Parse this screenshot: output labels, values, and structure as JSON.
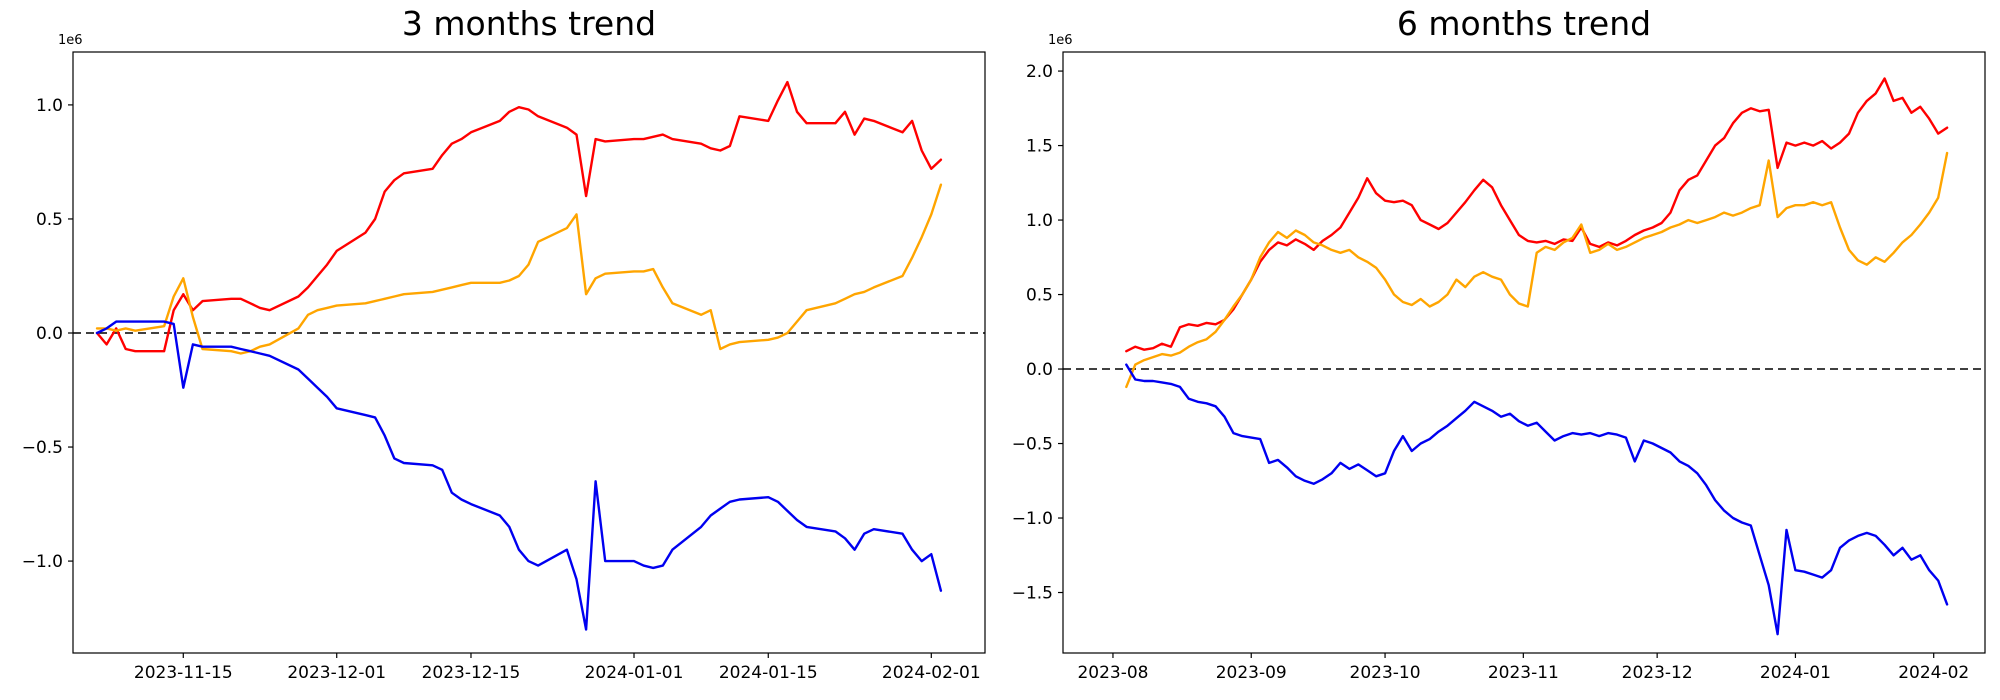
{
  "figure": {
    "background": "#ffffff",
    "axis_color": "#000000",
    "zero_line_color": "#000000"
  },
  "chart_data": [
    {
      "type": "line",
      "title": "3 months trend",
      "y_offset_label": "1e6",
      "xlabel": "",
      "ylabel": "",
      "grid": false,
      "legend": "none",
      "xlim": [
        -2.5,
        92.6
      ],
      "ylim": [
        -1.403,
        1.232
      ],
      "zero_dashed_line": 0,
      "yticks": [
        {
          "v": 1.0,
          "label": "1.0"
        },
        {
          "v": 0.5,
          "label": "0.5"
        },
        {
          "v": 0.0,
          "label": "0.0"
        },
        {
          "v": -0.5,
          "label": "−0.5"
        },
        {
          "v": -1.0,
          "label": "−1.0"
        }
      ],
      "xticks": [
        {
          "d": 9,
          "label": "2023-11-15"
        },
        {
          "d": 25,
          "label": "2023-12-01"
        },
        {
          "d": 39,
          "label": "2023-12-15"
        },
        {
          "d": 56,
          "label": "2024-01-01"
        },
        {
          "d": 70,
          "label": "2024-01-15"
        },
        {
          "d": 87,
          "label": "2024-02-01"
        }
      ],
      "x_days": [
        0,
        1,
        2,
        3,
        4,
        7,
        8,
        9,
        10,
        11,
        14,
        15,
        16,
        17,
        18,
        21,
        22,
        23,
        24,
        25,
        28,
        29,
        30,
        31,
        32,
        35,
        36,
        37,
        38,
        39,
        42,
        43,
        44,
        45,
        46,
        49,
        50,
        51,
        52,
        53,
        56,
        57,
        58,
        59,
        60,
        63,
        64,
        65,
        66,
        67,
        70,
        71,
        72,
        73,
        74,
        77,
        78,
        79,
        80,
        81,
        84,
        85,
        86,
        87,
        88
      ],
      "series": [
        {
          "name": "red",
          "color": "#ff0000",
          "values": [
            0.0,
            -0.05,
            0.02,
            -0.07,
            -0.08,
            -0.08,
            0.1,
            0.17,
            0.1,
            0.14,
            0.15,
            0.15,
            0.13,
            0.11,
            0.1,
            0.16,
            0.2,
            0.25,
            0.3,
            0.36,
            0.44,
            0.5,
            0.62,
            0.67,
            0.7,
            0.72,
            0.78,
            0.83,
            0.85,
            0.88,
            0.93,
            0.97,
            0.99,
            0.98,
            0.95,
            0.9,
            0.87,
            0.6,
            0.85,
            0.84,
            0.85,
            0.85,
            0.86,
            0.87,
            0.85,
            0.83,
            0.81,
            0.8,
            0.82,
            0.95,
            0.93,
            1.02,
            1.1,
            0.97,
            0.92,
            0.92,
            0.97,
            0.87,
            0.94,
            0.93,
            0.88,
            0.93,
            0.8,
            0.72,
            0.76
          ]
        },
        {
          "name": "orange",
          "color": "#ffa500",
          "values": [
            0.02,
            0.02,
            0.01,
            0.02,
            0.01,
            0.03,
            0.16,
            0.24,
            0.07,
            -0.07,
            -0.08,
            -0.09,
            -0.08,
            -0.06,
            -0.05,
            0.02,
            0.08,
            0.1,
            0.11,
            0.12,
            0.13,
            0.14,
            0.15,
            0.16,
            0.17,
            0.18,
            0.19,
            0.2,
            0.21,
            0.22,
            0.22,
            0.23,
            0.25,
            0.3,
            0.4,
            0.46,
            0.52,
            0.17,
            0.24,
            0.26,
            0.27,
            0.27,
            0.28,
            0.2,
            0.13,
            0.08,
            0.1,
            -0.07,
            -0.05,
            -0.04,
            -0.03,
            -0.02,
            0.0,
            0.05,
            0.1,
            0.13,
            0.15,
            0.17,
            0.18,
            0.2,
            0.25,
            0.33,
            0.42,
            0.52,
            0.65
          ]
        },
        {
          "name": "blue",
          "color": "#0000f0",
          "values": [
            0.0,
            0.02,
            0.05,
            0.05,
            0.05,
            0.05,
            0.04,
            -0.24,
            -0.05,
            -0.06,
            -0.06,
            -0.07,
            -0.08,
            -0.09,
            -0.1,
            -0.16,
            -0.2,
            -0.24,
            -0.28,
            -0.33,
            -0.36,
            -0.37,
            -0.45,
            -0.55,
            -0.57,
            -0.58,
            -0.6,
            -0.7,
            -0.73,
            -0.75,
            -0.8,
            -0.85,
            -0.95,
            -1.0,
            -1.02,
            -0.95,
            -1.08,
            -1.3,
            -0.65,
            -1.0,
            -1.0,
            -1.02,
            -1.03,
            -1.02,
            -0.95,
            -0.85,
            -0.8,
            -0.77,
            -0.74,
            -0.73,
            -0.72,
            -0.74,
            -0.78,
            -0.82,
            -0.85,
            -0.87,
            -0.9,
            -0.95,
            -0.88,
            -0.86,
            -0.88,
            -0.95,
            -1.0,
            -0.97,
            -1.13
          ]
        }
      ]
    },
    {
      "type": "line",
      "title": "6 months trend",
      "y_offset_label": "1e6",
      "xlabel": "",
      "ylabel": "",
      "grid": false,
      "legend": "none",
      "xlim": [
        -14.2,
        192.5
      ],
      "ylim": [
        -1.906,
        2.128
      ],
      "zero_dashed_line": 0,
      "yticks": [
        {
          "v": 2.0,
          "label": "2.0"
        },
        {
          "v": 1.5,
          "label": "1.5"
        },
        {
          "v": 1.0,
          "label": "1.0"
        },
        {
          "v": 0.5,
          "label": "0.5"
        },
        {
          "v": 0.0,
          "label": "0.0"
        },
        {
          "v": -0.5,
          "label": "−0.5"
        },
        {
          "v": -1.0,
          "label": "−1.0"
        },
        {
          "v": -1.5,
          "label": "−1.5"
        }
      ],
      "xticks": [
        {
          "d": -3,
          "label": "2023-08"
        },
        {
          "d": 28,
          "label": "2023-09"
        },
        {
          "d": 58,
          "label": "2023-10"
        },
        {
          "d": 89,
          "label": "2023-11"
        },
        {
          "d": 119,
          "label": "2023-12"
        },
        {
          "d": 150,
          "label": "2024-01"
        },
        {
          "d": 181,
          "label": "2024-02"
        }
      ],
      "x_days": [
        0,
        2,
        4,
        6,
        8,
        10,
        12,
        14,
        16,
        18,
        20,
        22,
        24,
        26,
        28,
        30,
        32,
        34,
        36,
        38,
        40,
        42,
        44,
        46,
        48,
        50,
        52,
        54,
        56,
        58,
        60,
        62,
        64,
        66,
        68,
        70,
        72,
        74,
        76,
        78,
        80,
        82,
        84,
        86,
        88,
        90,
        92,
        94,
        96,
        98,
        100,
        102,
        104,
        106,
        108,
        110,
        112,
        114,
        116,
        118,
        120,
        122,
        124,
        126,
        128,
        130,
        132,
        134,
        136,
        138,
        140,
        142,
        144,
        146,
        148,
        150,
        152,
        154,
        156,
        158,
        160,
        162,
        164,
        166,
        168,
        170,
        172,
        174,
        176,
        178,
        180,
        182,
        184
      ],
      "series": [
        {
          "name": "red",
          "color": "#ff0000",
          "values": [
            0.12,
            0.15,
            0.13,
            0.14,
            0.17,
            0.15,
            0.28,
            0.3,
            0.29,
            0.31,
            0.3,
            0.33,
            0.4,
            0.5,
            0.6,
            0.72,
            0.8,
            0.85,
            0.83,
            0.87,
            0.84,
            0.8,
            0.86,
            0.9,
            0.95,
            1.05,
            1.15,
            1.28,
            1.18,
            1.13,
            1.12,
            1.13,
            1.1,
            1.0,
            0.97,
            0.94,
            0.98,
            1.05,
            1.12,
            1.2,
            1.27,
            1.22,
            1.1,
            1.0,
            0.9,
            0.86,
            0.85,
            0.86,
            0.84,
            0.87,
            0.86,
            0.95,
            0.84,
            0.82,
            0.85,
            0.83,
            0.86,
            0.9,
            0.93,
            0.95,
            0.98,
            1.05,
            1.2,
            1.27,
            1.3,
            1.4,
            1.5,
            1.55,
            1.65,
            1.72,
            1.75,
            1.73,
            1.74,
            1.35,
            1.52,
            1.5,
            1.52,
            1.5,
            1.53,
            1.48,
            1.52,
            1.58,
            1.72,
            1.8,
            1.85,
            1.95,
            1.8,
            1.82,
            1.72,
            1.76,
            1.68,
            1.58,
            1.62
          ]
        },
        {
          "name": "orange",
          "color": "#ffa500",
          "values": [
            -0.12,
            0.03,
            0.06,
            0.08,
            0.1,
            0.09,
            0.11,
            0.15,
            0.18,
            0.2,
            0.25,
            0.33,
            0.42,
            0.5,
            0.6,
            0.75,
            0.85,
            0.92,
            0.88,
            0.93,
            0.9,
            0.85,
            0.83,
            0.8,
            0.78,
            0.8,
            0.75,
            0.72,
            0.68,
            0.6,
            0.5,
            0.45,
            0.43,
            0.47,
            0.42,
            0.45,
            0.5,
            0.6,
            0.55,
            0.62,
            0.65,
            0.62,
            0.6,
            0.5,
            0.44,
            0.42,
            0.78,
            0.82,
            0.8,
            0.85,
            0.88,
            0.97,
            0.78,
            0.8,
            0.84,
            0.8,
            0.82,
            0.85,
            0.88,
            0.9,
            0.92,
            0.95,
            0.97,
            1.0,
            0.98,
            1.0,
            1.02,
            1.05,
            1.03,
            1.05,
            1.08,
            1.1,
            1.4,
            1.02,
            1.08,
            1.1,
            1.1,
            1.12,
            1.1,
            1.12,
            0.95,
            0.8,
            0.73,
            0.7,
            0.75,
            0.72,
            0.78,
            0.85,
            0.9,
            0.97,
            1.05,
            1.15,
            1.45
          ]
        },
        {
          "name": "blue",
          "color": "#0000f0",
          "values": [
            0.03,
            -0.07,
            -0.08,
            -0.08,
            -0.09,
            -0.1,
            -0.12,
            -0.2,
            -0.22,
            -0.23,
            -0.25,
            -0.32,
            -0.43,
            -0.45,
            -0.46,
            -0.47,
            -0.63,
            -0.61,
            -0.66,
            -0.72,
            -0.75,
            -0.77,
            -0.74,
            -0.7,
            -0.63,
            -0.67,
            -0.64,
            -0.68,
            -0.72,
            -0.7,
            -0.55,
            -0.45,
            -0.55,
            -0.5,
            -0.47,
            -0.42,
            -0.38,
            -0.33,
            -0.28,
            -0.22,
            -0.25,
            -0.28,
            -0.32,
            -0.3,
            -0.35,
            -0.38,
            -0.36,
            -0.42,
            -0.48,
            -0.45,
            -0.43,
            -0.44,
            -0.43,
            -0.45,
            -0.43,
            -0.44,
            -0.46,
            -0.62,
            -0.48,
            -0.5,
            -0.53,
            -0.56,
            -0.62,
            -0.65,
            -0.7,
            -0.78,
            -0.88,
            -0.95,
            -1.0,
            -1.03,
            -1.05,
            -1.25,
            -1.45,
            -1.78,
            -1.08,
            -1.35,
            -1.36,
            -1.38,
            -1.4,
            -1.35,
            -1.2,
            -1.15,
            -1.12,
            -1.1,
            -1.12,
            -1.18,
            -1.25,
            -1.2,
            -1.28,
            -1.25,
            -1.35,
            -1.42,
            -1.58
          ]
        }
      ]
    }
  ]
}
